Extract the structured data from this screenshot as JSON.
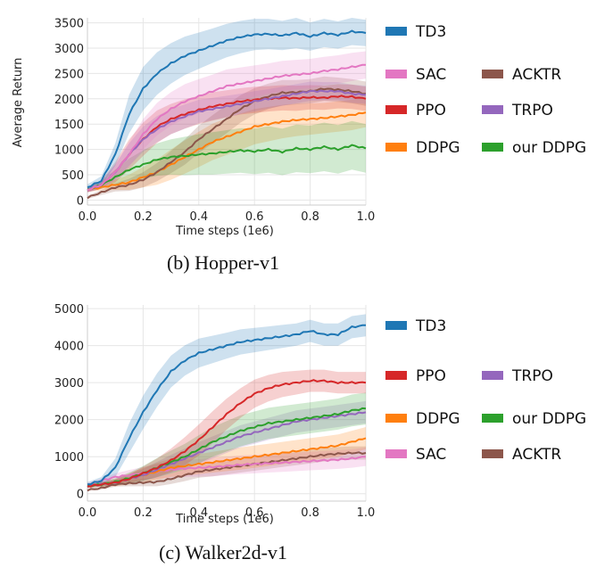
{
  "chart_data": [
    {
      "type": "line",
      "title": "(b) Hopper-v1",
      "xlabel": "Time steps (1e6)",
      "ylabel": "Average Return",
      "xlim": [
        0.0,
        1.0
      ],
      "ylim": [
        -100,
        3600
      ],
      "xticks": [
        "0.0",
        "0.2",
        "0.4",
        "0.6",
        "0.8",
        "1.0"
      ],
      "yticks": [
        "0",
        "500",
        "1000",
        "1500",
        "2000",
        "2500",
        "3000",
        "3500"
      ],
      "x": [
        0.0,
        0.05,
        0.1,
        0.15,
        0.2,
        0.25,
        0.3,
        0.35,
        0.4,
        0.45,
        0.5,
        0.55,
        0.6,
        0.65,
        0.7,
        0.75,
        0.8,
        0.85,
        0.9,
        0.95,
        1.0
      ],
      "series": [
        {
          "name": "TD3",
          "color": "#1f77b4",
          "values": [
            250,
            380,
            900,
            1700,
            2200,
            2500,
            2700,
            2850,
            2950,
            3050,
            3150,
            3220,
            3270,
            3280,
            3250,
            3300,
            3230,
            3300,
            3260,
            3330,
            3300
          ],
          "spread": [
            60,
            90,
            220,
            380,
            430,
            420,
            400,
            380,
            360,
            340,
            330,
            320,
            310,
            300,
            290,
            300,
            280,
            280,
            270,
            270,
            260
          ]
        },
        {
          "name": "SAC",
          "color": "#e377c2",
          "values": [
            200,
            300,
            550,
            900,
            1300,
            1600,
            1800,
            1950,
            2050,
            2150,
            2250,
            2300,
            2350,
            2400,
            2450,
            2480,
            2500,
            2550,
            2580,
            2630,
            2670
          ],
          "spread": [
            50,
            70,
            150,
            250,
            300,
            320,
            330,
            340,
            340,
            330,
            330,
            320,
            310,
            300,
            300,
            290,
            290,
            280,
            280,
            280,
            270
          ]
        },
        {
          "name": "PPO",
          "color": "#d62728",
          "values": [
            200,
            300,
            550,
            900,
            1200,
            1450,
            1600,
            1700,
            1780,
            1850,
            1900,
            1950,
            1980,
            2000,
            2020,
            2010,
            2030,
            2020,
            2050,
            2040,
            2000
          ],
          "spread": [
            50,
            80,
            200,
            300,
            330,
            320,
            300,
            290,
            280,
            280,
            270,
            260,
            260,
            250,
            250,
            250,
            240,
            240,
            240,
            240,
            240
          ]
        },
        {
          "name": "DDPG",
          "color": "#ff7f0e",
          "values": [
            200,
            250,
            300,
            350,
            450,
            550,
            700,
            850,
            1000,
            1150,
            1250,
            1350,
            1450,
            1500,
            1550,
            1580,
            1600,
            1620,
            1650,
            1680,
            1730
          ],
          "spread": [
            40,
            60,
            100,
            150,
            200,
            250,
            300,
            330,
            350,
            360,
            360,
            360,
            350,
            340,
            330,
            320,
            310,
            300,
            300,
            300,
            290
          ]
        },
        {
          "name": "ACKTR",
          "color": "#8c564b",
          "values": [
            50,
            150,
            250,
            300,
            400,
            550,
            750,
            950,
            1200,
            1400,
            1600,
            1800,
            1950,
            2050,
            2120,
            2130,
            2150,
            2200,
            2180,
            2150,
            2100
          ],
          "spread": [
            30,
            50,
            80,
            120,
            150,
            180,
            220,
            250,
            270,
            280,
            280,
            270,
            260,
            250,
            250,
            240,
            240,
            240,
            240,
            240,
            240
          ]
        },
        {
          "name": "TRPO",
          "color": "#9467bd",
          "values": [
            200,
            300,
            550,
            900,
            1200,
            1400,
            1550,
            1650,
            1750,
            1800,
            1850,
            1900,
            1950,
            2000,
            2050,
            2100,
            2150,
            2150,
            2150,
            2100,
            2080
          ],
          "spread": [
            50,
            70,
            150,
            220,
            250,
            260,
            250,
            240,
            230,
            220,
            210,
            200,
            200,
            190,
            190,
            190,
            190,
            180,
            180,
            180,
            180
          ]
        },
        {
          "name": "our DDPG",
          "color": "#2ca02c",
          "values": [
            200,
            300,
            450,
            600,
            700,
            800,
            850,
            870,
            900,
            920,
            950,
            980,
            960,
            1000,
            950,
            1020,
            1000,
            1050,
            1000,
            1080,
            1020
          ],
          "spread": [
            40,
            80,
            150,
            220,
            280,
            320,
            350,
            380,
            400,
            420,
            430,
            440,
            450,
            460,
            460,
            470,
            470,
            480,
            480,
            480,
            480
          ]
        }
      ],
      "legend": [
        {
          "name": "TD3",
          "color": "#1f77b4"
        },
        {
          "name": "SAC",
          "color": "#e377c2"
        },
        {
          "name": "ACKTR",
          "color": "#8c564b"
        },
        {
          "name": "PPO",
          "color": "#d62728"
        },
        {
          "name": "TRPO",
          "color": "#9467bd"
        },
        {
          "name": "DDPG",
          "color": "#ff7f0e"
        },
        {
          "name": "our DDPG",
          "color": "#2ca02c"
        }
      ]
    },
    {
      "type": "line",
      "title": "(c) Walker2d-v1",
      "xlabel": "Time steps (1e6)",
      "ylabel": "",
      "xlim": [
        0.0,
        1.0
      ],
      "ylim": [
        -200,
        5100
      ],
      "xticks": [
        "0.0",
        "0.2",
        "0.4",
        "0.6",
        "0.8",
        "1.0"
      ],
      "yticks": [
        "0",
        "1000",
        "2000",
        "3000",
        "4000",
        "5000"
      ],
      "x": [
        0.0,
        0.05,
        0.1,
        0.15,
        0.2,
        0.25,
        0.3,
        0.35,
        0.4,
        0.45,
        0.5,
        0.55,
        0.6,
        0.65,
        0.7,
        0.75,
        0.8,
        0.85,
        0.9,
        0.95,
        1.0
      ],
      "series": [
        {
          "name": "TD3",
          "color": "#1f77b4",
          "values": [
            250,
            350,
            700,
            1500,
            2200,
            2800,
            3300,
            3600,
            3800,
            3900,
            4000,
            4100,
            4150,
            4200,
            4250,
            4300,
            4400,
            4300,
            4300,
            4500,
            4550
          ],
          "spread": [
            60,
            100,
            250,
            400,
            450,
            450,
            430,
            410,
            390,
            370,
            350,
            340,
            330,
            320,
            310,
            300,
            300,
            300,
            300,
            300,
            300
          ]
        },
        {
          "name": "PPO",
          "color": "#d62728",
          "values": [
            200,
            250,
            300,
            400,
            550,
            700,
            900,
            1150,
            1450,
            1800,
            2150,
            2450,
            2700,
            2850,
            2950,
            3000,
            3050,
            3050,
            3000,
            3000,
            3000
          ],
          "spread": [
            50,
            60,
            80,
            120,
            180,
            250,
            320,
            380,
            420,
            430,
            420,
            400,
            380,
            360,
            340,
            320,
            300,
            300,
            290,
            290,
            290
          ]
        },
        {
          "name": "TRPO",
          "color": "#9467bd",
          "values": [
            200,
            250,
            300,
            400,
            500,
            650,
            800,
            950,
            1100,
            1250,
            1400,
            1550,
            1650,
            1750,
            1850,
            1950,
            2000,
            2050,
            2100,
            2150,
            2200
          ],
          "spread": [
            40,
            60,
            90,
            130,
            170,
            210,
            250,
            270,
            290,
            300,
            300,
            300,
            300,
            300,
            300,
            300,
            300,
            300,
            300,
            300,
            300
          ]
        },
        {
          "name": "DDPG",
          "color": "#ff7f0e",
          "values": [
            200,
            250,
            300,
            400,
            500,
            600,
            700,
            750,
            800,
            850,
            900,
            950,
            1000,
            1050,
            1100,
            1150,
            1200,
            1250,
            1300,
            1400,
            1500
          ],
          "spread": [
            40,
            60,
            100,
            150,
            200,
            230,
            250,
            260,
            270,
            280,
            290,
            300,
            300,
            300,
            300,
            300,
            300,
            300,
            300,
            300,
            300
          ]
        },
        {
          "name": "our DDPG",
          "color": "#2ca02c",
          "values": [
            200,
            250,
            320,
            420,
            550,
            700,
            850,
            1000,
            1200,
            1400,
            1550,
            1700,
            1800,
            1900,
            1950,
            2000,
            2050,
            2100,
            2150,
            2250,
            2300
          ],
          "spread": [
            40,
            60,
            100,
            150,
            200,
            260,
            310,
            350,
            380,
            400,
            410,
            420,
            420,
            420,
            420,
            420,
            420,
            420,
            420,
            430,
            430
          ]
        },
        {
          "name": "SAC",
          "color": "#e377c2",
          "values": [
            250,
            350,
            450,
            500,
            550,
            600,
            650,
            680,
            700,
            720,
            750,
            780,
            800,
            820,
            840,
            860,
            880,
            900,
            920,
            950,
            1000
          ],
          "spread": [
            40,
            60,
            100,
            140,
            170,
            200,
            220,
            230,
            240,
            250,
            250,
            250,
            250,
            250,
            250,
            250,
            250,
            250,
            250,
            250,
            250
          ]
        },
        {
          "name": "ACKTR",
          "color": "#8c564b",
          "values": [
            100,
            150,
            250,
            280,
            300,
            320,
            400,
            500,
            600,
            650,
            700,
            750,
            800,
            850,
            900,
            950,
            1000,
            1050,
            1080,
            1100,
            1100
          ],
          "spread": [
            30,
            40,
            60,
            80,
            100,
            120,
            140,
            160,
            170,
            180,
            180,
            180,
            180,
            180,
            180,
            180,
            180,
            180,
            180,
            180,
            180
          ]
        }
      ],
      "legend": [
        {
          "name": "TD3",
          "color": "#1f77b4"
        },
        {
          "name": "PPO",
          "color": "#d62728"
        },
        {
          "name": "TRPO",
          "color": "#9467bd"
        },
        {
          "name": "DDPG",
          "color": "#ff7f0e"
        },
        {
          "name": "our DDPG",
          "color": "#2ca02c"
        },
        {
          "name": "SAC",
          "color": "#e377c2"
        },
        {
          "name": "ACKTR",
          "color": "#8c564b"
        }
      ]
    }
  ]
}
